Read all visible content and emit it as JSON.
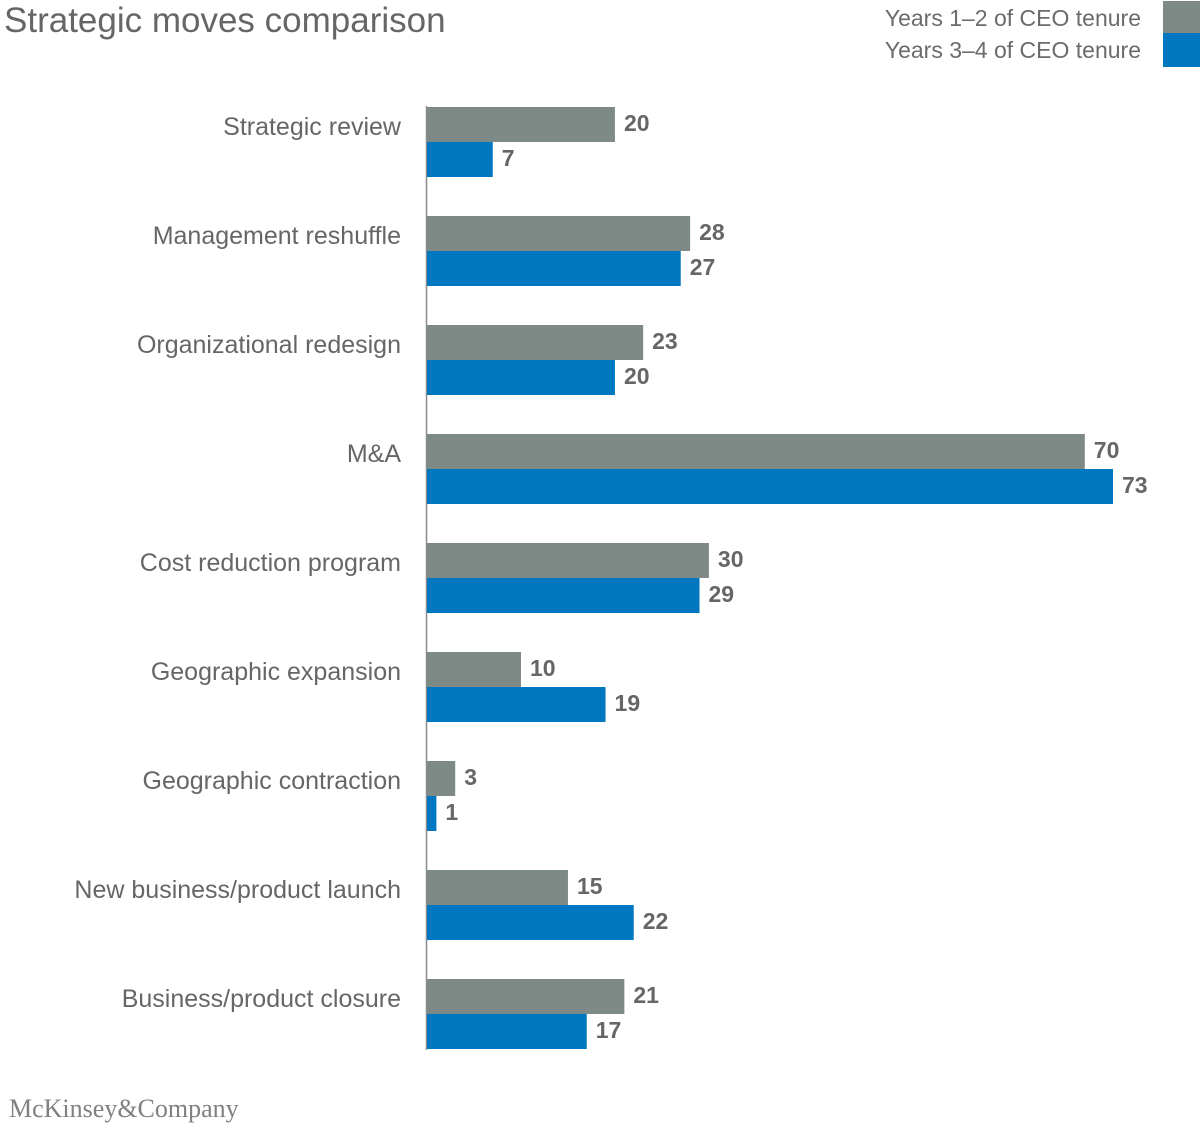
{
  "title": "Strategic moves comparison",
  "legend": [
    {
      "label": "Years 1–2 of CEO tenure",
      "color": "#7e8a85"
    },
    {
      "label": "Years 3–4 of CEO tenure",
      "color": "#0078c1"
    }
  ],
  "brand": "McKinsey&Company",
  "chart_data": {
    "type": "bar",
    "orientation": "horizontal",
    "title": "Strategic moves comparison",
    "categories": [
      "Strategic review",
      "Management reshuffle",
      "Organizational redesign",
      "M&A",
      "Cost reduction program",
      "Geographic expansion",
      "Geographic contraction",
      "New business/product launch",
      "Business/product closure"
    ],
    "series": [
      {
        "name": "Years 1–2 of CEO tenure",
        "color": "#7e8a85",
        "values": [
          20,
          28,
          23,
          70,
          30,
          10,
          3,
          15,
          21
        ]
      },
      {
        "name": "Years 3–4 of CEO tenure",
        "color": "#0078c1",
        "values": [
          7,
          27,
          20,
          73,
          29,
          19,
          1,
          22,
          17
        ]
      }
    ],
    "xlim": [
      0,
      73
    ],
    "grid": false,
    "legend_position": "top-right",
    "data_labels": true
  }
}
